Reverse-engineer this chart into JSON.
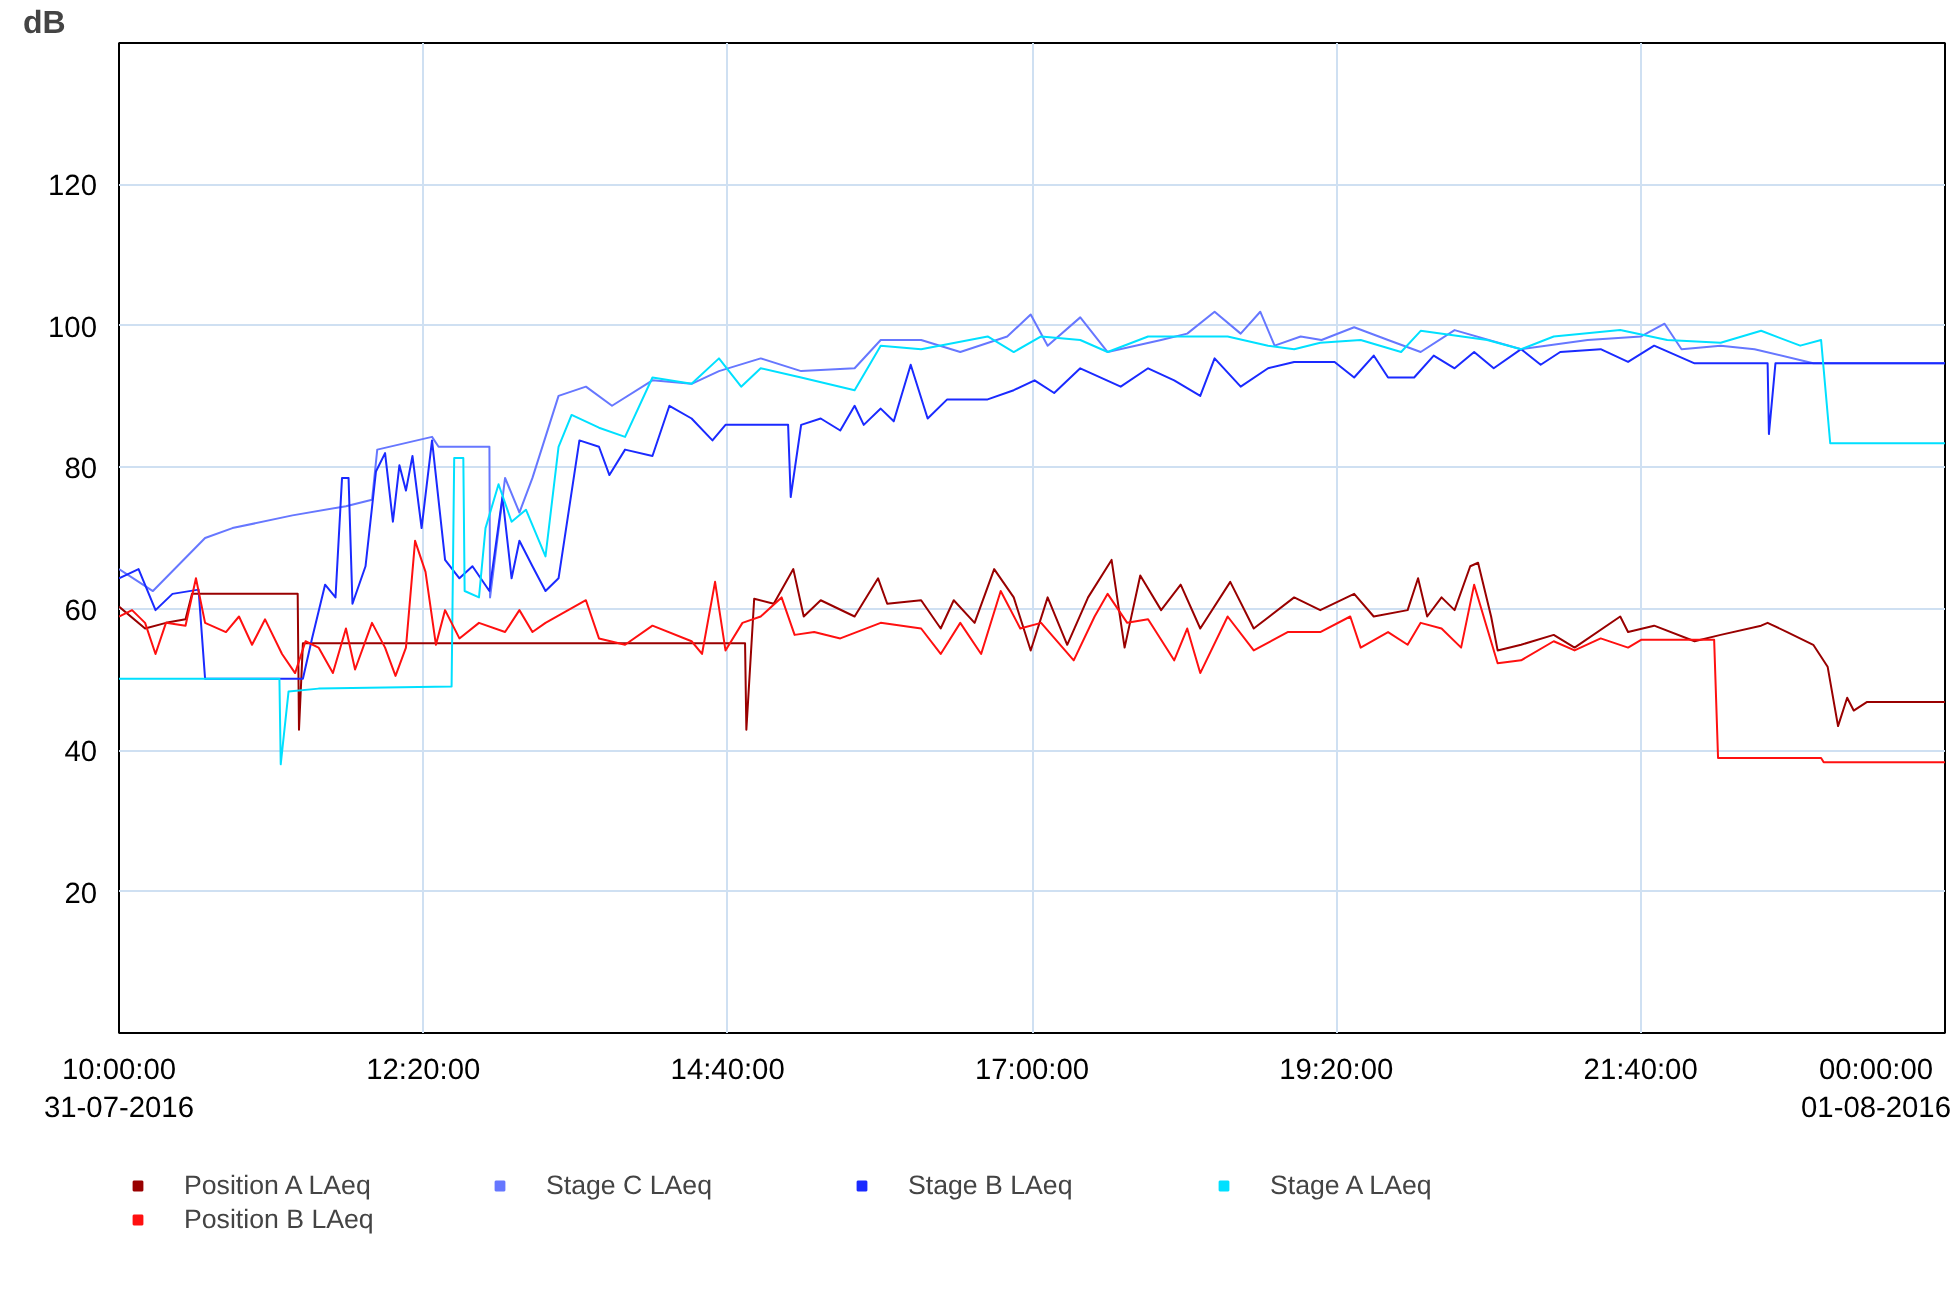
{
  "chart_data": {
    "type": "line",
    "ylabel": "dB",
    "xlim": [
      10,
      24
    ],
    "ylim": [
      0,
      140
    ],
    "xticks": [
      {
        "value": 10,
        "label": "10:00:00\n31-07-2016"
      },
      {
        "value": 12.3333,
        "label": "12:20:00"
      },
      {
        "value": 14.6667,
        "label": "14:40:00"
      },
      {
        "value": 17,
        "label": "17:00:00"
      },
      {
        "value": 19.3333,
        "label": "19:20:00"
      },
      {
        "value": 21.6667,
        "label": "21:40:00"
      },
      {
        "value": 24,
        "label": "00:00:00\n01-08-2016"
      }
    ],
    "yticks": [
      20,
      40,
      60,
      80,
      100,
      120
    ],
    "grid": true,
    "legend": "bottom",
    "marker": "none",
    "line_style": "solid",
    "series": [
      {
        "name": "Position A LAeq",
        "color": "#990000",
        "x": [
          10.0,
          10.2,
          10.36,
          10.51,
          10.56,
          11.37,
          11.38,
          11.41,
          14.8,
          14.81,
          14.87,
          15.02,
          15.17,
          15.25,
          15.38,
          15.64,
          15.82,
          15.89,
          16.15,
          16.3,
          16.4,
          16.56,
          16.71,
          16.86,
          16.99,
          17.12,
          17.27,
          17.43,
          17.61,
          17.71,
          17.83,
          17.99,
          18.14,
          18.29,
          18.52,
          18.7,
          19.01,
          19.21,
          19.47,
          19.62,
          19.88,
          19.96,
          20.03,
          20.14,
          20.24,
          20.36,
          20.42,
          20.52,
          20.57,
          20.75,
          21.0,
          21.16,
          21.51,
          21.57,
          21.77,
          22.08,
          22.28,
          22.59,
          22.64,
          22.79,
          22.99,
          23.1,
          23.18,
          23.25,
          23.3,
          23.4,
          24.0
        ],
        "values": [
          60.3,
          57.2,
          58.0,
          58.5,
          62.1,
          62.1,
          42.9,
          55.1,
          55.1,
          42.9,
          61.4,
          60.7,
          65.6,
          58.9,
          61.2,
          58.9,
          64.3,
          60.7,
          61.2,
          57.2,
          61.2,
          58.0,
          65.6,
          61.6,
          54.1,
          61.6,
          54.9,
          61.6,
          66.9,
          54.5,
          64.7,
          59.8,
          63.4,
          57.2,
          63.8,
          57.2,
          61.6,
          59.8,
          62.1,
          58.9,
          59.8,
          64.3,
          58.9,
          61.6,
          59.8,
          66.0,
          66.5,
          58.9,
          54.1,
          54.9,
          56.3,
          54.5,
          58.9,
          56.7,
          57.6,
          55.4,
          56.3,
          57.6,
          58.0,
          56.7,
          54.9,
          51.8,
          43.4,
          47.4,
          45.6,
          46.8,
          46.8
        ]
      },
      {
        "name": "Stage C LAeq",
        "color": "#6677ff",
        "x": [
          10.0,
          10.26,
          10.66,
          10.87,
          11.33,
          11.74,
          11.94,
          11.98,
          12.4,
          12.45,
          12.84,
          12.845,
          12.96,
          13.07,
          13.17,
          13.37,
          13.58,
          13.78,
          14.09,
          14.39,
          14.6,
          14.92,
          15.23,
          15.64,
          15.84,
          16.15,
          16.45,
          16.81,
          16.99,
          17.12,
          17.37,
          17.58,
          17.99,
          18.19,
          18.4,
          18.6,
          18.75,
          18.86,
          19.06,
          19.22,
          19.47,
          19.73,
          19.98,
          20.24,
          20.75,
          21.26,
          21.67,
          21.85,
          21.98,
          22.28,
          22.54,
          22.99,
          24.0
        ],
        "values": [
          65.6,
          62.5,
          70.0,
          71.4,
          73.2,
          74.5,
          75.4,
          82.5,
          84.3,
          82.9,
          82.9,
          61.6,
          78.5,
          73.6,
          78.5,
          90.1,
          91.4,
          88.7,
          92.3,
          91.8,
          93.6,
          95.4,
          93.6,
          94.0,
          98.0,
          98.0,
          96.3,
          98.5,
          101.6,
          97.2,
          101.2,
          96.3,
          98.0,
          98.9,
          102.0,
          98.9,
          102.0,
          97.2,
          98.5,
          98.0,
          99.8,
          98.0,
          96.3,
          99.4,
          96.7,
          98.0,
          98.5,
          100.3,
          96.7,
          97.2,
          96.7,
          94.7,
          94.7
        ]
      },
      {
        "name": "Stage B LAeq",
        "color": "#1a2aff",
        "x": [
          10.0,
          10.15,
          10.28,
          10.41,
          10.61,
          10.66,
          11.41,
          11.48,
          11.58,
          11.66,
          11.71,
          11.76,
          11.79,
          11.89,
          11.97,
          12.04,
          12.1,
          12.15,
          12.2,
          12.25,
          12.32,
          12.4,
          12.5,
          12.61,
          12.71,
          12.84,
          12.94,
          13.01,
          13.07,
          13.17,
          13.27,
          13.37,
          13.53,
          13.68,
          13.76,
          13.88,
          14.09,
          14.22,
          14.39,
          14.55,
          14.65,
          15.13,
          15.15,
          15.23,
          15.38,
          15.53,
          15.64,
          15.71,
          15.84,
          15.94,
          16.07,
          16.2,
          16.35,
          16.66,
          16.86,
          17.02,
          17.17,
          17.37,
          17.68,
          17.89,
          18.09,
          18.29,
          18.4,
          18.6,
          18.81,
          19.01,
          19.32,
          19.47,
          19.62,
          19.73,
          19.93,
          20.08,
          20.24,
          20.39,
          20.54,
          20.75,
          20.9,
          21.05,
          21.36,
          21.57,
          21.77,
          22.08,
          22.64,
          22.65,
          22.7,
          24.0
        ],
        "values": [
          64.3,
          65.6,
          59.8,
          62.1,
          62.7,
          50.1,
          50.1,
          55.8,
          63.4,
          61.6,
          78.5,
          78.5,
          60.7,
          66.0,
          79.4,
          82.0,
          72.3,
          80.3,
          76.7,
          81.6,
          71.4,
          83.8,
          66.9,
          64.3,
          66.0,
          62.5,
          75.8,
          64.3,
          69.6,
          66.0,
          62.5,
          64.3,
          83.8,
          82.9,
          78.9,
          82.5,
          81.6,
          88.7,
          86.9,
          83.8,
          86.0,
          86.0,
          75.8,
          86.0,
          86.9,
          85.2,
          88.7,
          86.0,
          88.3,
          86.5,
          94.5,
          86.9,
          89.6,
          89.6,
          90.9,
          92.3,
          90.5,
          94.0,
          91.4,
          94.0,
          92.3,
          90.1,
          95.4,
          91.4,
          94.0,
          94.9,
          94.9,
          92.7,
          95.8,
          92.7,
          92.7,
          95.8,
          94.0,
          96.3,
          94.0,
          96.7,
          94.5,
          96.3,
          96.7,
          94.9,
          97.2,
          94.7,
          94.7,
          84.7,
          94.7,
          94.7
        ]
      },
      {
        "name": "Stage A LAeq",
        "color": "#00e0ff",
        "x": [
          10.0,
          11.23,
          11.24,
          11.3,
          11.53,
          12.55,
          12.57,
          12.64,
          12.65,
          12.76,
          12.81,
          12.91,
          13.01,
          13.12,
          13.27,
          13.37,
          13.47,
          13.68,
          13.88,
          14.09,
          14.39,
          14.6,
          14.77,
          14.92,
          15.23,
          15.64,
          15.84,
          16.15,
          16.66,
          16.86,
          17.07,
          17.37,
          17.58,
          17.89,
          18.19,
          18.5,
          18.81,
          19.01,
          19.21,
          19.52,
          19.83,
          19.98,
          20.49,
          20.75,
          21.0,
          21.51,
          21.87,
          22.28,
          22.59,
          22.89,
          23.05,
          23.12,
          24.0
        ],
        "values": [
          50.1,
          50.1,
          38.0,
          48.3,
          48.7,
          49.0,
          81.3,
          81.3,
          62.5,
          61.6,
          71.4,
          77.6,
          72.3,
          74.0,
          67.4,
          82.9,
          87.4,
          85.6,
          84.3,
          92.7,
          91.8,
          95.4,
          91.4,
          94.0,
          92.7,
          90.9,
          97.2,
          96.7,
          98.5,
          96.3,
          98.5,
          98.0,
          96.3,
          98.5,
          98.5,
          98.5,
          97.2,
          96.7,
          97.6,
          98.0,
          96.3,
          99.3,
          98.0,
          96.7,
          98.5,
          99.4,
          98.0,
          97.6,
          99.3,
          97.2,
          98.0,
          83.4,
          83.4
        ]
      },
      {
        "name": "Position B LAeq",
        "color": "#ff1010",
        "x": [
          10.0,
          10.1,
          10.2,
          10.28,
          10.36,
          10.51,
          10.59,
          10.66,
          10.82,
          10.92,
          11.02,
          11.12,
          11.25,
          11.35,
          11.43,
          11.53,
          11.64,
          11.74,
          11.81,
          11.94,
          12.04,
          12.12,
          12.2,
          12.27,
          12.35,
          12.43,
          12.5,
          12.61,
          12.76,
          12.96,
          13.07,
          13.17,
          13.27,
          13.58,
          13.68,
          13.88,
          14.09,
          14.39,
          14.47,
          14.57,
          14.65,
          14.78,
          14.92,
          15.08,
          15.18,
          15.33,
          15.53,
          15.84,
          16.15,
          16.3,
          16.45,
          16.61,
          16.76,
          16.91,
          17.07,
          17.32,
          17.48,
          17.58,
          17.73,
          17.89,
          18.09,
          18.19,
          18.29,
          18.5,
          18.7,
          18.96,
          19.21,
          19.44,
          19.52,
          19.73,
          19.88,
          19.98,
          20.14,
          20.29,
          20.39,
          20.49,
          20.57,
          20.75,
          21.0,
          21.16,
          21.36,
          21.57,
          21.67,
          22.23,
          22.26,
          23.05,
          23.07,
          24.0
        ],
        "values": [
          58.9,
          59.8,
          58.0,
          53.6,
          58.0,
          57.6,
          64.3,
          58.0,
          56.7,
          58.9,
          54.9,
          58.5,
          53.6,
          50.9,
          55.4,
          54.5,
          50.9,
          57.2,
          51.4,
          58.0,
          54.5,
          50.5,
          54.5,
          69.6,
          65.2,
          54.9,
          59.8,
          55.8,
          58.0,
          56.7,
          59.8,
          56.7,
          58.0,
          61.2,
          55.8,
          54.9,
          57.6,
          55.4,
          53.6,
          63.8,
          54.1,
          58.0,
          58.9,
          61.6,
          56.3,
          56.7,
          55.8,
          58.0,
          57.2,
          53.6,
          58.0,
          53.6,
          62.5,
          57.2,
          58.0,
          52.7,
          58.9,
          62.1,
          58.0,
          58.5,
          52.7,
          57.2,
          50.9,
          58.9,
          54.1,
          56.7,
          56.7,
          58.9,
          54.5,
          56.7,
          54.9,
          58.0,
          57.2,
          54.5,
          63.4,
          57.2,
          52.3,
          52.7,
          55.4,
          54.1,
          55.8,
          54.5,
          55.6,
          55.6,
          38.9,
          38.9,
          38.3,
          38.3
        ]
      }
    ]
  }
}
